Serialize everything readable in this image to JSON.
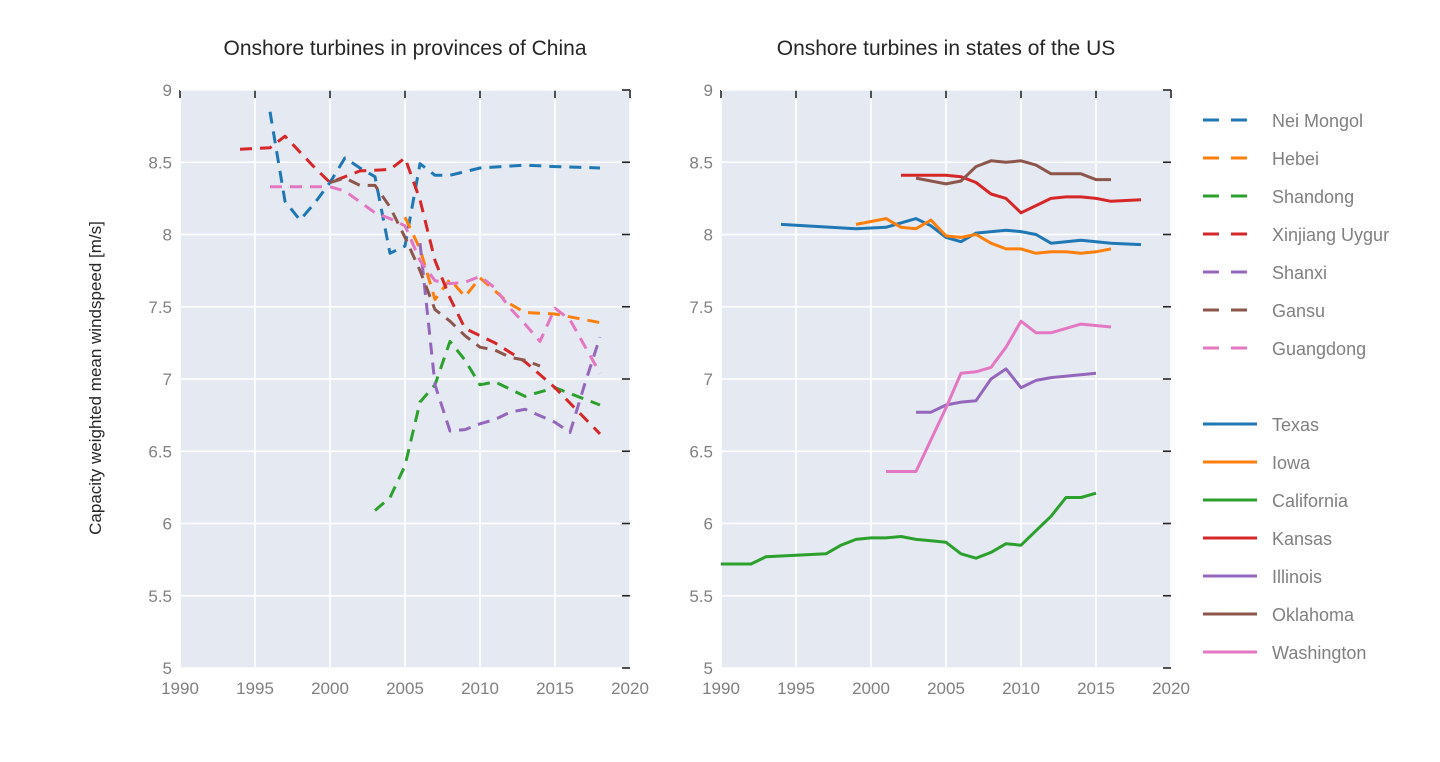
{
  "figure": {
    "ylabel": "Capacity weighted mean windspeed [m/s]",
    "background": "#e5eaf2",
    "grid_color": "#ffffff",
    "grid": true,
    "legend_position": "right"
  },
  "chart_data": [
    {
      "type": "line",
      "title": "Onshore turbines in provinces of China",
      "xlim": [
        1990,
        2020
      ],
      "ylim": [
        5,
        9
      ],
      "xticks": [
        "1990",
        "1995",
        "2000",
        "2005",
        "2010",
        "2015",
        "2020"
      ],
      "yticks": [
        "5",
        "5.5",
        "6",
        "6.5",
        "7",
        "7.5",
        "8",
        "8.5",
        "9"
      ],
      "line_style": "dashed",
      "series": [
        {
          "name": "Nei Mongol",
          "color": "#1f77b4",
          "x": [
            1996,
            1997,
            1998,
            1999,
            2000,
            2001,
            2002,
            2003,
            2004,
            2005,
            2006,
            2007,
            2008,
            2010,
            2013,
            2015,
            2018
          ],
          "y": [
            8.85,
            8.23,
            8.1,
            8.22,
            8.36,
            8.53,
            8.46,
            8.4,
            7.87,
            7.92,
            8.49,
            8.41,
            8.41,
            8.46,
            8.48,
            8.47,
            8.46
          ]
        },
        {
          "name": "Hebei",
          "color": "#ff7f0e",
          "x": [
            2005,
            2006,
            2007,
            2008,
            2009,
            2010,
            2011,
            2012,
            2013,
            2015,
            2018
          ],
          "y": [
            8.12,
            7.9,
            7.55,
            7.69,
            7.57,
            7.7,
            7.61,
            7.52,
            7.46,
            7.45,
            7.39
          ]
        },
        {
          "name": "Shandong",
          "color": "#2ca02c",
          "x": [
            2003,
            2004,
            2005,
            2006,
            2007,
            2008,
            2009,
            2010,
            2011,
            2013,
            2015,
            2018
          ],
          "y": [
            6.09,
            6.18,
            6.4,
            6.84,
            6.96,
            7.26,
            7.13,
            6.96,
            6.98,
            6.88,
            6.94,
            6.82
          ]
        },
        {
          "name": "Xinjiang Uygur",
          "color": "#d62728",
          "x": [
            1994,
            1996,
            1997,
            1998,
            1999,
            2000,
            2002,
            2004,
            2005,
            2006,
            2007,
            2008,
            2009,
            2010,
            2011,
            2013,
            2015,
            2018
          ],
          "y": [
            8.59,
            8.6,
            8.68,
            8.57,
            8.46,
            8.36,
            8.44,
            8.45,
            8.53,
            8.24,
            7.82,
            7.56,
            7.35,
            7.3,
            7.25,
            7.12,
            6.94,
            6.62
          ]
        },
        {
          "name": "Shanxi",
          "color": "#9467bd",
          "x": [
            2006,
            2007,
            2008,
            2009,
            2010,
            2011,
            2012,
            2013,
            2015,
            2016,
            2017,
            2018
          ],
          "y": [
            7.94,
            6.96,
            6.64,
            6.65,
            6.69,
            6.72,
            6.77,
            6.79,
            6.7,
            6.63,
            6.97,
            7.29
          ]
        },
        {
          "name": "Gansu",
          "color": "#8c564b",
          "x": [
            2000,
            2001,
            2002,
            2003,
            2004,
            2005,
            2006,
            2007,
            2008,
            2009,
            2010,
            2011,
            2012,
            2013,
            2014
          ],
          "y": [
            8.36,
            8.39,
            8.34,
            8.34,
            8.19,
            7.98,
            7.75,
            7.48,
            7.4,
            7.3,
            7.22,
            7.2,
            7.15,
            7.13,
            7.09
          ]
        },
        {
          "name": "Guangdong",
          "color": "#e377c2",
          "x": [
            1996,
            1998,
            2000,
            2001,
            2003,
            2004,
            2005,
            2006,
            2007,
            2008,
            2009,
            2010,
            2011,
            2012,
            2013,
            2014,
            2015,
            2016,
            2018
          ],
          "y": [
            8.33,
            8.33,
            8.33,
            8.3,
            8.15,
            8.11,
            8.06,
            7.82,
            7.68,
            7.66,
            7.67,
            7.71,
            7.63,
            7.49,
            7.38,
            7.26,
            7.49,
            7.41,
            7.04
          ]
        }
      ]
    },
    {
      "type": "line",
      "title": "Onshore turbines in states of the US",
      "xlim": [
        1990,
        2020
      ],
      "ylim": [
        5,
        9
      ],
      "xticks": [
        "1990",
        "1995",
        "2000",
        "2005",
        "2010",
        "2015",
        "2020"
      ],
      "yticks": [
        "5",
        "5.5",
        "6",
        "6.5",
        "7",
        "7.5",
        "8",
        "8.5",
        "9"
      ],
      "line_style": "solid",
      "series": [
        {
          "name": "Texas",
          "color": "#1f77b4",
          "x": [
            1994,
            1999,
            2001,
            2002,
            2003,
            2004,
            2005,
            2006,
            2007,
            2009,
            2010,
            2011,
            2012,
            2014,
            2015,
            2016,
            2018
          ],
          "y": [
            8.07,
            8.04,
            8.05,
            8.08,
            8.11,
            8.06,
            7.98,
            7.95,
            8.01,
            8.03,
            8.02,
            8.0,
            7.94,
            7.96,
            7.95,
            7.94,
            7.93
          ]
        },
        {
          "name": "Iowa",
          "color": "#ff7f0e",
          "x": [
            1999,
            2000,
            2001,
            2002,
            2003,
            2004,
            2005,
            2006,
            2007,
            2008,
            2009,
            2010,
            2011,
            2012,
            2013,
            2014,
            2015,
            2016
          ],
          "y": [
            8.07,
            8.09,
            8.11,
            8.05,
            8.04,
            8.1,
            7.99,
            7.98,
            8.0,
            7.94,
            7.9,
            7.9,
            7.87,
            7.88,
            7.88,
            7.87,
            7.88,
            7.9
          ]
        },
        {
          "name": "California",
          "color": "#2ca02c",
          "x": [
            1990,
            1992,
            1993,
            1995,
            1997,
            1998,
            1999,
            2000,
            2001,
            2002,
            2003,
            2004,
            2005,
            2006,
            2007,
            2008,
            2009,
            2010,
            2011,
            2012,
            2013,
            2014,
            2015
          ],
          "y": [
            5.72,
            5.72,
            5.77,
            5.78,
            5.79,
            5.85,
            5.89,
            5.9,
            5.9,
            5.91,
            5.89,
            5.88,
            5.87,
            5.79,
            5.76,
            5.8,
            5.86,
            5.85,
            5.95,
            6.05,
            6.18,
            6.18,
            6.21
          ]
        },
        {
          "name": "Kansas",
          "color": "#d62728",
          "x": [
            2002,
            2005,
            2006,
            2007,
            2008,
            2009,
            2010,
            2011,
            2012,
            2013,
            2014,
            2015,
            2016,
            2018
          ],
          "y": [
            8.41,
            8.41,
            8.4,
            8.36,
            8.28,
            8.25,
            8.15,
            8.2,
            8.25,
            8.26,
            8.26,
            8.25,
            8.23,
            8.24
          ]
        },
        {
          "name": "Illinois",
          "color": "#9467bd",
          "x": [
            2003,
            2004,
            2005,
            2006,
            2007,
            2008,
            2009,
            2010,
            2011,
            2012,
            2015
          ],
          "y": [
            6.77,
            6.77,
            6.82,
            6.84,
            6.85,
            7.0,
            7.07,
            6.94,
            6.99,
            7.01,
            7.04
          ]
        },
        {
          "name": "Oklahoma",
          "color": "#8c564b",
          "x": [
            2003,
            2004,
            2005,
            2006,
            2007,
            2008,
            2009,
            2010,
            2011,
            2012,
            2013,
            2014,
            2015,
            2016
          ],
          "y": [
            8.39,
            8.37,
            8.35,
            8.37,
            8.47,
            8.51,
            8.5,
            8.51,
            8.48,
            8.42,
            8.42,
            8.42,
            8.38,
            8.38
          ]
        },
        {
          "name": "Washington",
          "color": "#e377c2",
          "x": [
            2001,
            2003,
            2004,
            2005,
            2006,
            2007,
            2008,
            2009,
            2010,
            2011,
            2012,
            2014,
            2016
          ],
          "y": [
            6.36,
            6.36,
            6.58,
            6.8,
            7.04,
            7.05,
            7.08,
            7.22,
            7.4,
            7.32,
            7.32,
            7.38,
            7.36
          ]
        }
      ]
    }
  ]
}
